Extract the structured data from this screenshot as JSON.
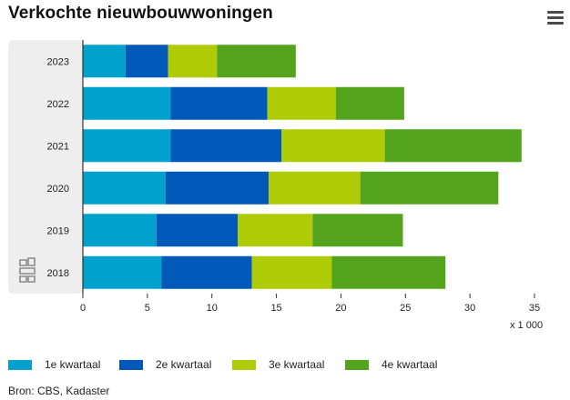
{
  "header": {
    "title": "Verkochte nieuwbouwwoningen",
    "menu_icon": "hamburger-menu-icon"
  },
  "chart_data": {
    "type": "bar",
    "orientation": "horizontal",
    "stacked": true,
    "categories": [
      "2023",
      "2022",
      "2021",
      "2020",
      "2019",
      "2018"
    ],
    "series": [
      {
        "name": "1e kwartaal",
        "color": "#00a1cd",
        "values": [
          3.3,
          6.8,
          6.8,
          6.4,
          5.7,
          6.1
        ]
      },
      {
        "name": "2e kwartaal",
        "color": "#0058b8",
        "values": [
          3.3,
          7.5,
          8.6,
          8.0,
          6.3,
          7.0
        ]
      },
      {
        "name": "3e kwartaal",
        "color": "#afcb05",
        "values": [
          3.8,
          5.3,
          8.0,
          7.1,
          5.8,
          6.2
        ]
      },
      {
        "name": "4e kwartaal",
        "color": "#53a31d",
        "values": [
          6.1,
          5.3,
          10.6,
          10.7,
          7.0,
          8.8
        ]
      }
    ],
    "xlim": [
      0,
      35
    ],
    "xticks": [
      0,
      5,
      10,
      15,
      20,
      25,
      30,
      35
    ],
    "xlabel": "x 1 000",
    "legend_position": "bottom"
  },
  "source": "Bron: CBS, Kadaster",
  "logo_icon": "cbs-logo-icon"
}
